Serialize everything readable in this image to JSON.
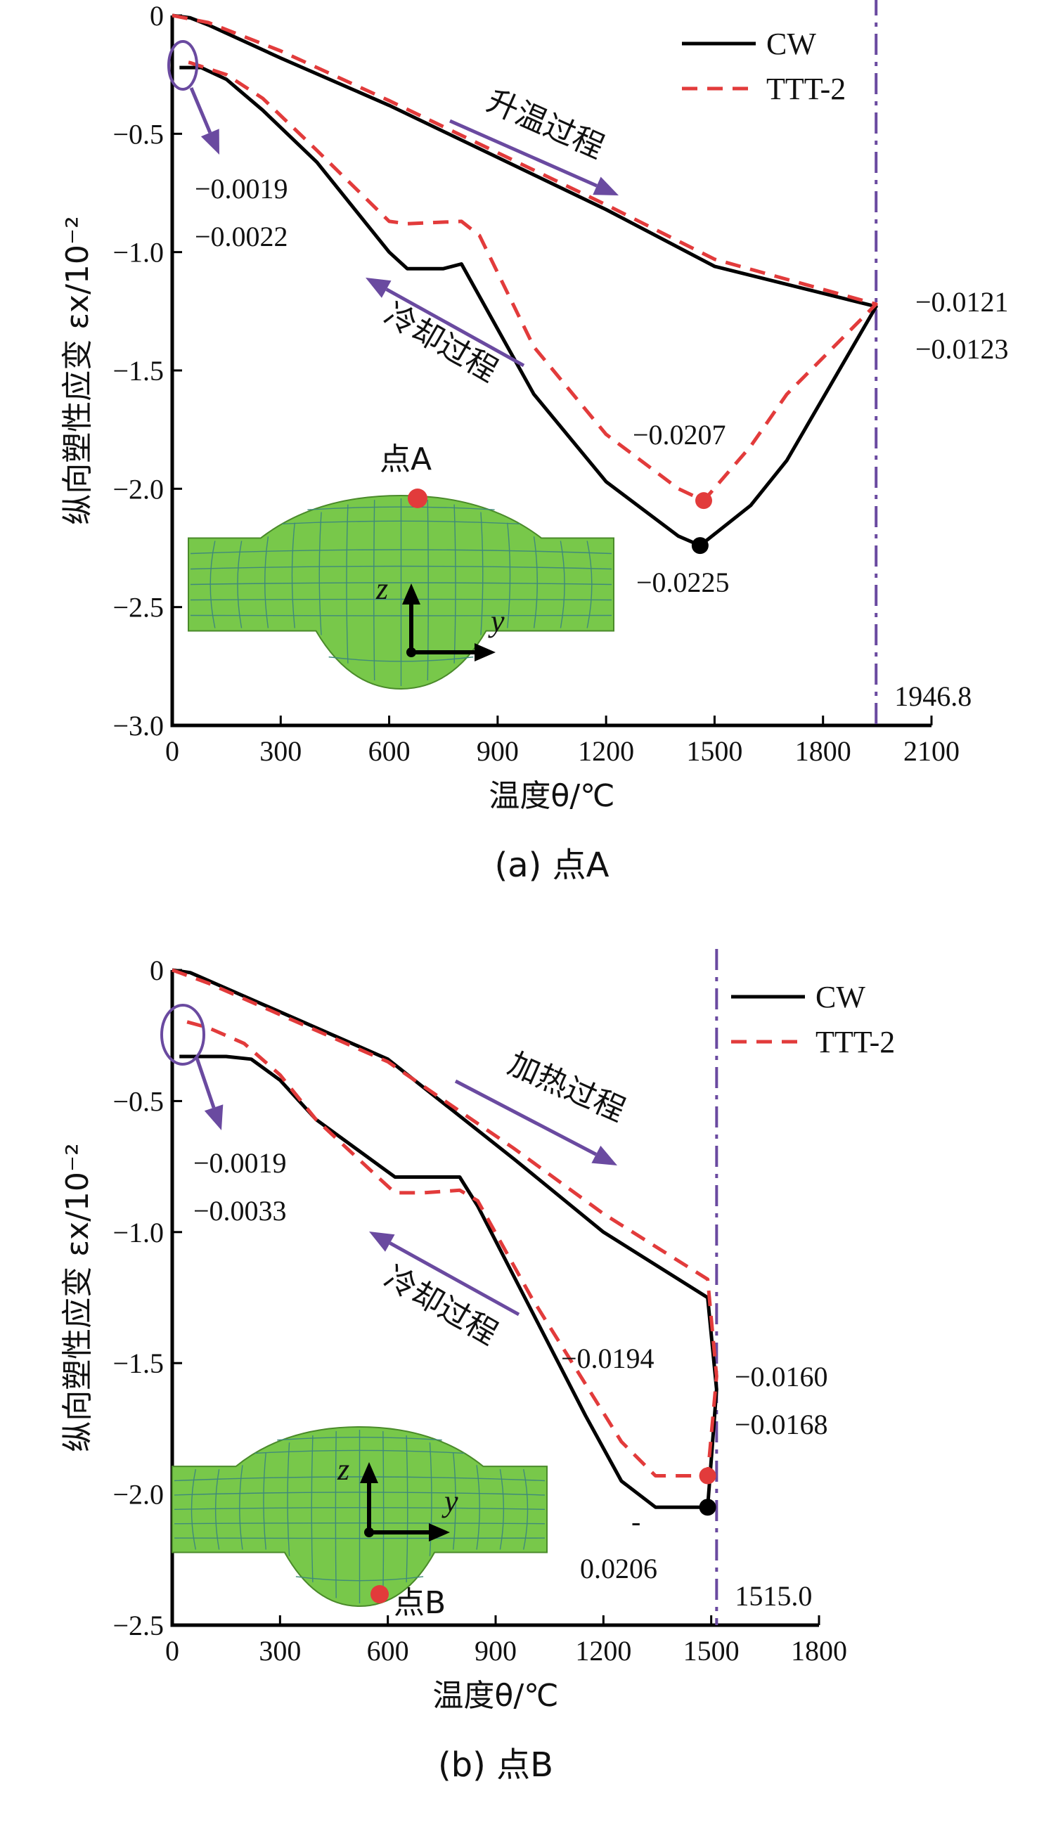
{
  "chart_data": [
    {
      "type": "line",
      "caption": "(a) 点A",
      "xlabel": "温度θ/℃",
      "ylabel": "纵向塑性应变 εx/10⁻²",
      "xlim": [
        0,
        2100
      ],
      "ylim": [
        -3.0,
        0
      ],
      "xticks": [
        "0",
        "300",
        "600",
        "900",
        "1200",
        "1500",
        "1800",
        "2100"
      ],
      "yticks": [
        "0",
        "-0.5",
        "-1.0",
        "-1.5",
        "-2.0",
        "-2.5",
        "-3.0"
      ],
      "legend": [
        "CW",
        "TTT-2"
      ],
      "legend_position": "top-right",
      "series": [
        {
          "name": "CW",
          "heating": [
            [
              0,
              0
            ],
            [
              50,
              -0.01
            ],
            [
              100,
              -0.04
            ],
            [
              300,
              -0.18
            ],
            [
              600,
              -0.38
            ],
            [
              900,
              -0.6
            ],
            [
              1200,
              -0.82
            ],
            [
              1500,
              -1.06
            ],
            [
              1946.8,
              -1.23
            ]
          ],
          "cooling": [
            [
              1946.8,
              -1.23
            ],
            [
              1700,
              -1.88
            ],
            [
              1600,
              -2.07
            ],
            [
              1460,
              -2.24
            ],
            [
              1400,
              -2.2
            ],
            [
              1200,
              -1.97
            ],
            [
              1000,
              -1.6
            ],
            [
              800,
              -1.05
            ],
            [
              750,
              -1.07
            ],
            [
              650,
              -1.07
            ],
            [
              600,
              -1.0
            ],
            [
              400,
              -0.62
            ],
            [
              250,
              -0.4
            ],
            [
              150,
              -0.27
            ],
            [
              80,
              -0.22
            ],
            [
              20,
              -0.22
            ]
          ]
        },
        {
          "name": "TTT-2",
          "heating": [
            [
              0,
              0
            ],
            [
              100,
              -0.03
            ],
            [
              300,
              -0.15
            ],
            [
              600,
              -0.36
            ],
            [
              900,
              -0.58
            ],
            [
              1200,
              -0.8
            ],
            [
              1500,
              -1.03
            ],
            [
              1946.8,
              -1.22
            ]
          ],
          "cooling": [
            [
              1946.8,
              -1.22
            ],
            [
              1700,
              -1.6
            ],
            [
              1600,
              -1.82
            ],
            [
              1470,
              -2.05
            ],
            [
              1400,
              -2.0
            ],
            [
              1200,
              -1.77
            ],
            [
              1000,
              -1.4
            ],
            [
              850,
              -0.93
            ],
            [
              800,
              -0.87
            ],
            [
              650,
              -0.88
            ],
            [
              600,
              -0.87
            ],
            [
              400,
              -0.57
            ],
            [
              250,
              -0.35
            ],
            [
              150,
              -0.25
            ],
            [
              50,
              -0.2
            ],
            [
              20,
              -0.19
            ]
          ]
        }
      ],
      "annotations": {
        "heating_label": "升温过程",
        "cooling_label": "冷却过程",
        "start_values": [
          "-0.0019",
          "-0.0022"
        ],
        "peak_values": [
          "-0.0121",
          "-0.0123"
        ],
        "ttt_min": "-0.0207",
        "cw_min": "-0.0225",
        "peak_temperature": "1946.8",
        "point_label": "点A",
        "mesh_axes": [
          "z",
          "y"
        ]
      }
    },
    {
      "type": "line",
      "caption": "(b) 点B",
      "xlabel": "温度θ/℃",
      "ylabel": "纵向塑性应变 εx/10⁻²",
      "xlim": [
        0,
        1800
      ],
      "ylim": [
        -2.5,
        0
      ],
      "xticks": [
        "0",
        "300",
        "600",
        "900",
        "1200",
        "1500",
        "1800"
      ],
      "yticks": [
        "0",
        "-0.5",
        "-1.0",
        "-1.5",
        "-2.0",
        "-2.5"
      ],
      "legend": [
        "CW",
        "TTT-2"
      ],
      "legend_position": "top-right",
      "series": [
        {
          "name": "CW",
          "heating": [
            [
              0,
              0
            ],
            [
              50,
              -0.01
            ],
            [
              300,
              -0.16
            ],
            [
              600,
              -0.34
            ],
            [
              950,
              -0.72
            ],
            [
              1200,
              -1.0
            ],
            [
              1490,
              -1.25
            ]
          ],
          "cooling": [
            [
              1490,
              -1.25
            ],
            [
              1515,
              -1.6
            ],
            [
              1490,
              -2.05
            ],
            [
              1400,
              -2.05
            ],
            [
              1345,
              -2.05
            ],
            [
              1250,
              -1.95
            ],
            [
              1150,
              -1.7
            ],
            [
              1000,
              -1.3
            ],
            [
              850,
              -0.9
            ],
            [
              800,
              -0.79
            ],
            [
              750,
              -0.79
            ],
            [
              620,
              -0.79
            ],
            [
              580,
              -0.75
            ],
            [
              400,
              -0.57
            ],
            [
              300,
              -0.42
            ],
            [
              220,
              -0.34
            ],
            [
              150,
              -0.33
            ],
            [
              20,
              -0.33
            ]
          ]
        },
        {
          "name": "TTT-2",
          "heating": [
            [
              0,
              0
            ],
            [
              100,
              -0.05
            ],
            [
              300,
              -0.17
            ],
            [
              600,
              -0.35
            ],
            [
              950,
              -0.68
            ],
            [
              1200,
              -0.93
            ],
            [
              1490,
              -1.18
            ]
          ],
          "cooling": [
            [
              1490,
              -1.18
            ],
            [
              1515,
              -1.55
            ],
            [
              1490,
              -1.93
            ],
            [
              1400,
              -1.93
            ],
            [
              1345,
              -1.93
            ],
            [
              1250,
              -1.8
            ],
            [
              1150,
              -1.58
            ],
            [
              1000,
              -1.25
            ],
            [
              850,
              -0.88
            ],
            [
              800,
              -0.84
            ],
            [
              700,
              -0.85
            ],
            [
              620,
              -0.85
            ],
            [
              580,
              -0.8
            ],
            [
              400,
              -0.57
            ],
            [
              300,
              -0.4
            ],
            [
              200,
              -0.28
            ],
            [
              100,
              -0.22
            ],
            [
              20,
              -0.19
            ]
          ]
        }
      ],
      "annotations": {
        "heating_label": "加热过程",
        "cooling_label": "冷却过程",
        "start_values": [
          "-0.0019",
          "-0.0033"
        ],
        "peak_values": [
          "-0.0160",
          "-0.0168"
        ],
        "ttt_min": "-0.0194",
        "cw_min": "0.0206",
        "cw_min_dash": "-",
        "peak_temperature": "1515.0",
        "point_label": "点B",
        "mesh_axes": [
          "z",
          "y"
        ]
      }
    }
  ]
}
